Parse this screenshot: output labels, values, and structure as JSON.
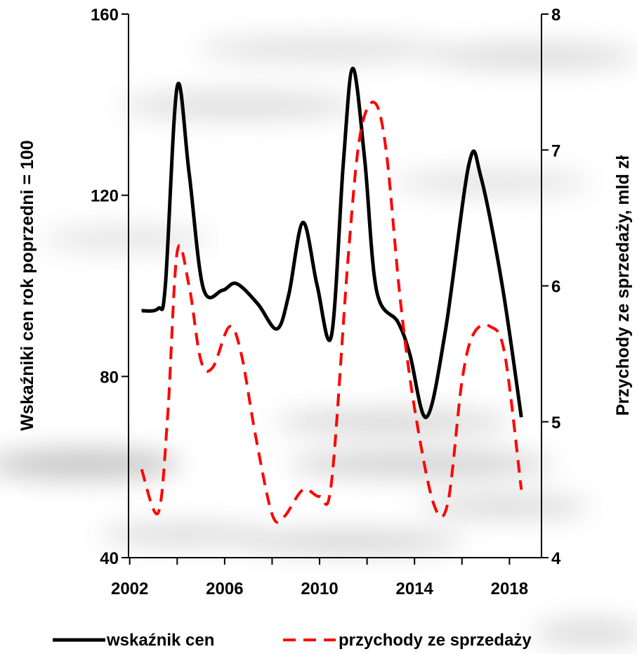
{
  "chart_data": {
    "type": "line",
    "x_ticks": [
      2002,
      2006,
      2010,
      2014,
      2018
    ],
    "xlim": [
      2001.95,
      2019.35
    ],
    "y_left": {
      "label": "Wskaźniki cen rok poprzedni = 100",
      "lim": [
        40,
        160
      ],
      "ticks": [
        40,
        80,
        120,
        160
      ]
    },
    "y_right": {
      "label": "Przychody ze sprzedaży, mld zł",
      "lim": [
        4,
        8
      ],
      "ticks": [
        4,
        5,
        6,
        7,
        8
      ]
    },
    "series": [
      {
        "name": "wskaźnik cen",
        "axis": "left",
        "color": "#000000",
        "dash": "solid",
        "x": [
          2002.5,
          2003.2,
          2003.5,
          2004.0,
          2004.5,
          2005.1,
          2005.9,
          2006.5,
          2007.4,
          2008.2,
          2008.7,
          2009.3,
          2009.9,
          2010.5,
          2011.0,
          2011.4,
          2011.9,
          2012.4,
          2013.3,
          2013.8,
          2014.5,
          2015.3,
          2016.3,
          2016.8,
          2017.7,
          2018.5
        ],
        "y": [
          94.5,
          95,
          100,
          144,
          125,
          99.5,
          99,
          100.5,
          96,
          90.5,
          98,
          114,
          100,
          89,
          127,
          148,
          128,
          99,
          92,
          85,
          71,
          90,
          127,
          124,
          100,
          71
        ]
      },
      {
        "name": "przychody ze sprzedaży",
        "axis": "right",
        "color": "#ff0000",
        "dash": "dashed",
        "x": [
          2002.5,
          2003.2,
          2003.6,
          2004.0,
          2004.5,
          2005.0,
          2005.5,
          2006.2,
          2006.7,
          2007.3,
          2008.0,
          2008.5,
          2009.3,
          2010.0,
          2010.5,
          2011.2,
          2011.7,
          2012.3,
          2012.8,
          2013.4,
          2014.0,
          2014.8,
          2015.4,
          2016.0,
          2016.5,
          2017.2,
          2017.8,
          2018.5
        ],
        "y": [
          4.65,
          4.33,
          5.05,
          6.25,
          6.0,
          5.45,
          5.4,
          5.7,
          5.5,
          4.9,
          4.32,
          4.3,
          4.5,
          4.45,
          4.55,
          6.2,
          7.1,
          7.35,
          7.0,
          5.9,
          5.1,
          4.4,
          4.4,
          5.3,
          5.65,
          5.7,
          5.5,
          4.5
        ]
      }
    ],
    "legend": {
      "position": "bottom",
      "items": [
        "wskaźnik cen",
        "przychody ze sprzedaży"
      ]
    }
  }
}
